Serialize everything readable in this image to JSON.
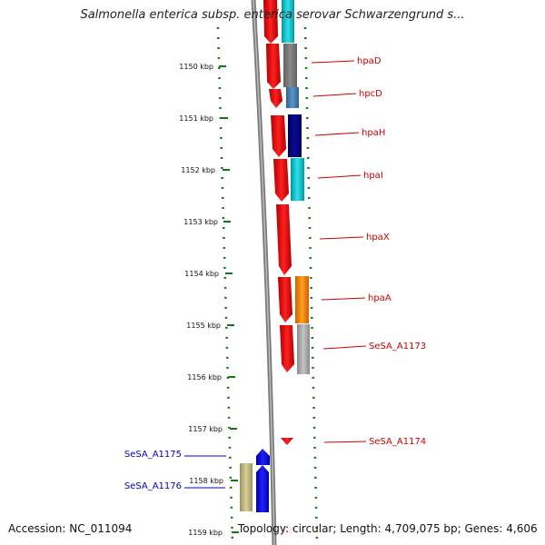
{
  "title": "Salmonella enterica subsp. enterica serovar Schwarzengrund s...",
  "footer": {
    "accession": "Accession: NC_011094",
    "stats": "Topology: circular; Length: 4,709,075 bp; Genes: 4,606"
  },
  "colors": {
    "cds_arrow": "#ff0000",
    "blue_gene": "#0000ff",
    "olive_gene": "#c8c080",
    "backbone": "#8c8c8c",
    "ruler": "#006600",
    "label_red": "#cc0000",
    "label_blue": "#0000cc"
  },
  "ruler": {
    "ticks": [
      {
        "label": "1150 kbp"
      },
      {
        "label": "1151 kbp"
      },
      {
        "label": "1152 kbp"
      },
      {
        "label": "1153 kbp"
      },
      {
        "label": "1154 kbp"
      },
      {
        "label": "1155 kbp"
      },
      {
        "label": "1156 kbp"
      },
      {
        "label": "1157 kbp"
      },
      {
        "label": "1158 kbp"
      },
      {
        "label": "1159 kbp"
      }
    ]
  },
  "genes_right": [
    {
      "label": "hpaD",
      "color": "#808080"
    },
    {
      "label": "hpcD",
      "color": "#4682b4"
    },
    {
      "label": "hpaH",
      "color": "#00008b"
    },
    {
      "label": "hpaI",
      "color": "#00ced1"
    },
    {
      "label": "hpaX",
      "color": "#ff0000"
    },
    {
      "label": "hpaA",
      "color": "#ff8c00"
    },
    {
      "label": "SeSA_A1173",
      "color": "#a9a9a9"
    },
    {
      "label": "SeSA_A1174",
      "color": "#ff0000"
    }
  ],
  "genes_left": [
    {
      "label": "SeSA_A1175",
      "color": "#0000ff"
    },
    {
      "label": "SeSA_A1176",
      "color": "#c8c080"
    }
  ]
}
